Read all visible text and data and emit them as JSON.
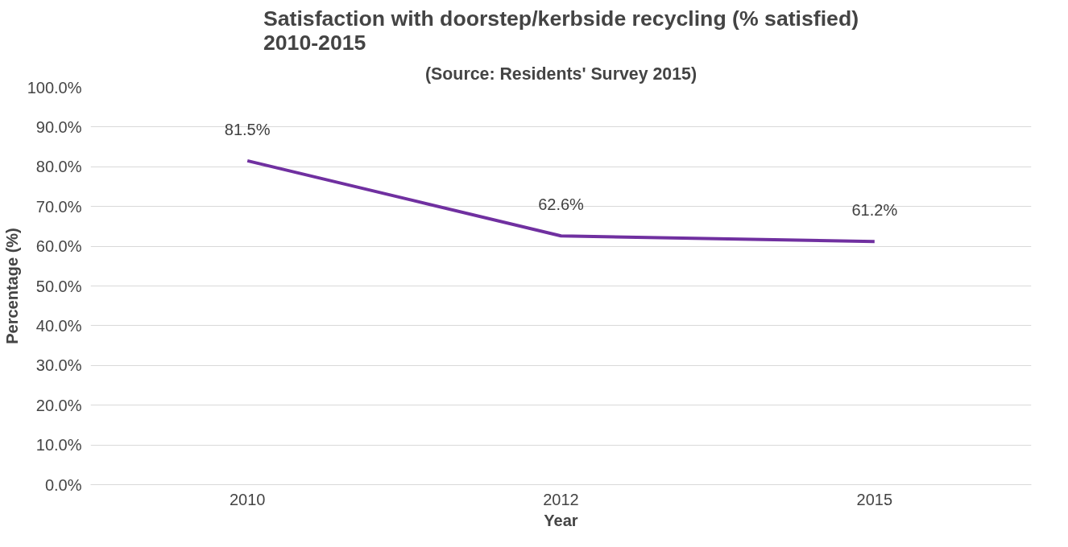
{
  "chart_data": {
    "type": "line",
    "title": "Satisfaction with doorstep/kerbside recycling (% satisfied)\n2010-2015",
    "subtitle": "(Source: Residents' Survey 2015)",
    "xlabel": "Year",
    "ylabel": "Percentage (%)",
    "categories": [
      "2010",
      "2012",
      "2015"
    ],
    "series": [
      {
        "color": "#7030a0",
        "values": [
          81.5,
          62.6,
          61.2
        ],
        "value_labels": [
          "81.5%",
          "62.6%",
          "61.2%"
        ]
      }
    ],
    "ylim": [
      0,
      100
    ],
    "yticks": [
      {
        "value": 0,
        "label": "0.0%"
      },
      {
        "value": 10,
        "label": "10.0%"
      },
      {
        "value": 20,
        "label": "20.0%"
      },
      {
        "value": 30,
        "label": "30.0%"
      },
      {
        "value": 40,
        "label": "40.0%"
      },
      {
        "value": 50,
        "label": "50.0%"
      },
      {
        "value": 60,
        "label": "60.0%"
      },
      {
        "value": 70,
        "label": "70.0%"
      },
      {
        "value": 80,
        "label": "80.0%"
      },
      {
        "value": 90,
        "label": "90.0%"
      },
      {
        "value": 100,
        "label": "100.0%"
      }
    ],
    "grid": "y",
    "marker": "none",
    "line_style": "solid"
  }
}
